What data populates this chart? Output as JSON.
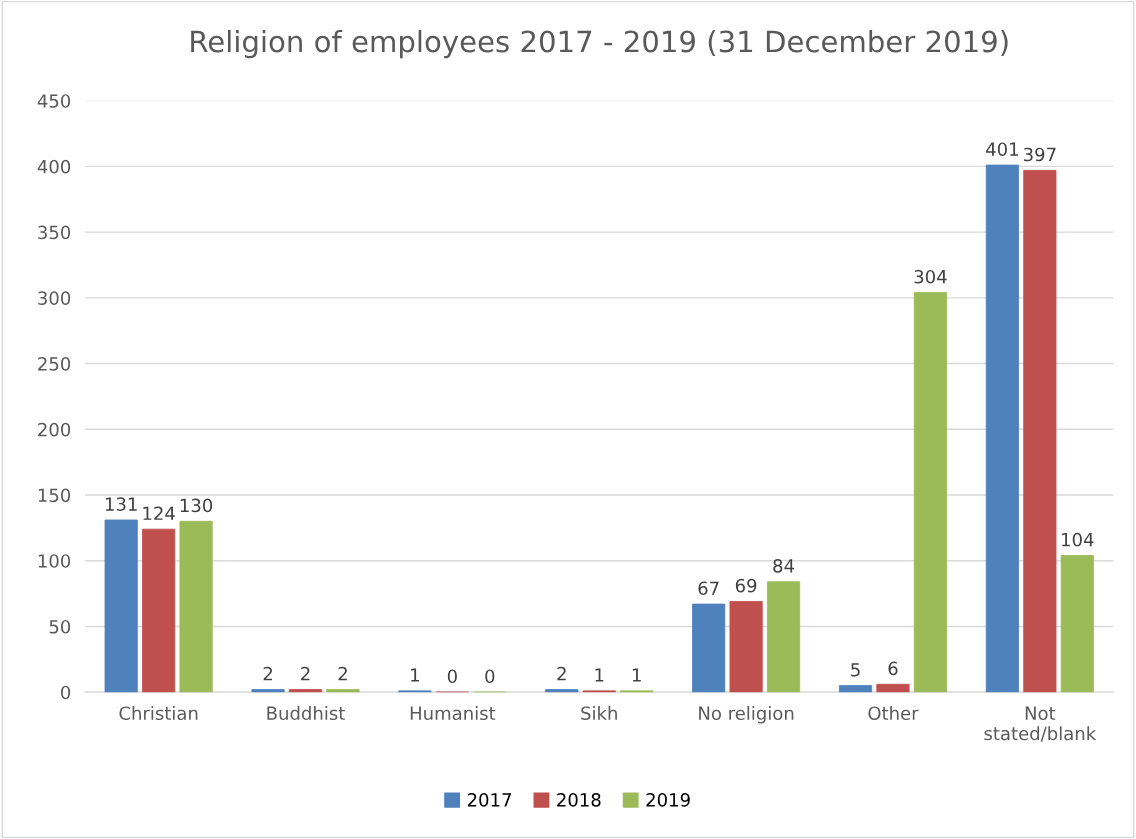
{
  "chart_data": {
    "type": "bar",
    "title": "Religion of employees 2017 - 2019 (31 December 2019)",
    "categories": [
      "Christian",
      "Buddhist",
      "Humanist",
      "Sikh",
      "No religion",
      "Other",
      "Not\nstated/blank"
    ],
    "series": [
      {
        "name": "2017",
        "color": "#4f81bd",
        "values": [
          131,
          2,
          1,
          2,
          67,
          5,
          401
        ]
      },
      {
        "name": "2018",
        "color": "#c0504d",
        "values": [
          124,
          2,
          0,
          1,
          69,
          6,
          397
        ]
      },
      {
        "name": "2019",
        "color": "#9bbb59",
        "values": [
          130,
          2,
          0,
          1,
          84,
          304,
          104
        ]
      }
    ],
    "ylim": [
      0,
      450
    ],
    "yticks": [
      0,
      50,
      100,
      150,
      200,
      250,
      300,
      350,
      400,
      450
    ],
    "grid": "y",
    "legend": "bottom",
    "data_labels": true
  }
}
